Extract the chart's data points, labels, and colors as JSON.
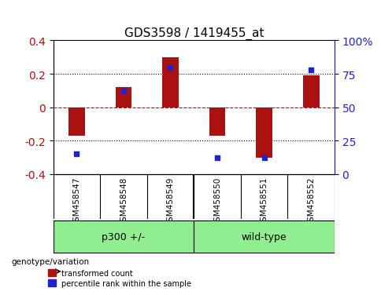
{
  "title": "GDS3598 / 1419455_at",
  "categories": [
    "GSM458547",
    "GSM458548",
    "GSM458549",
    "GSM458550",
    "GSM458551",
    "GSM458552"
  ],
  "red_values": [
    -0.17,
    0.12,
    0.3,
    -0.17,
    -0.3,
    0.19
  ],
  "blue_values": [
    15,
    62,
    80,
    12,
    12,
    78
  ],
  "ylim_left": [
    -0.4,
    0.4
  ],
  "ylim_right": [
    0,
    100
  ],
  "yticks_left": [
    -0.4,
    -0.2,
    0,
    0.2,
    0.4
  ],
  "yticks_right": [
    0,
    25,
    50,
    75,
    100
  ],
  "red_color": "#aa1111",
  "blue_color": "#2222cc",
  "bar_width": 0.35,
  "groups": [
    {
      "label": "p300 +/-",
      "samples": [
        "GSM458547",
        "GSM458548",
        "GSM458549"
      ],
      "color": "#90ee90"
    },
    {
      "label": "wild-type",
      "samples": [
        "GSM458550",
        "GSM458551",
        "GSM458552"
      ],
      "color": "#90ee90"
    }
  ],
  "group_bg_color": "#90ee90",
  "xlabel_area_bg": "#cccccc",
  "legend_red": "transformed count",
  "legend_blue": "percentile rank within the sample",
  "genotype_label": "genotype/variation"
}
